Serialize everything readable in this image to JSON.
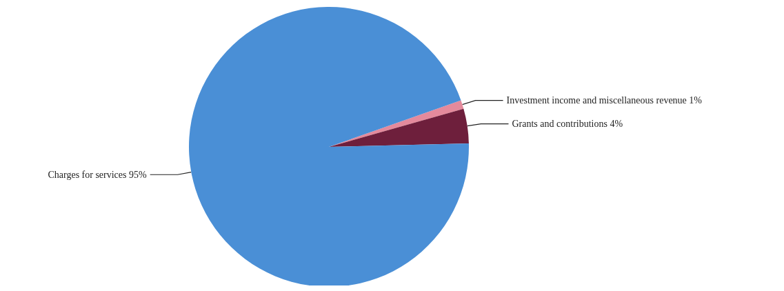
{
  "chart_data": {
    "type": "pie",
    "categories": [
      "Investment income and miscellaneous revenue",
      "Grants and contributions",
      "Charges for services"
    ],
    "values": [
      1,
      4,
      95
    ],
    "colors": [
      "#e48a9c",
      "#6e1f3c",
      "#4a8fd6"
    ],
    "value_labels": [
      "1%",
      "4%",
      "95%"
    ]
  }
}
